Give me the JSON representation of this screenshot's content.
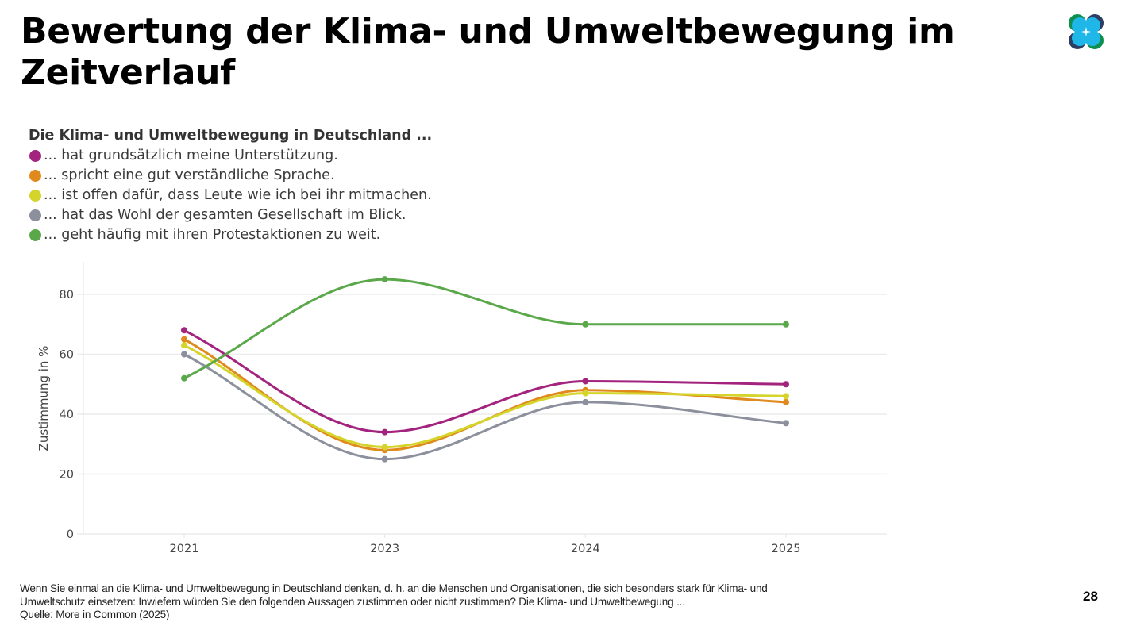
{
  "slide": {
    "title": "Bewertung der Klima- und Umweltbewegung im Zeitverlauf",
    "logo_icon": "four-circles-logo-icon",
    "page_number": "28",
    "brand_colors": [
      "#0e8f4f",
      "#2c3e63",
      "#1fb6e8"
    ]
  },
  "legend": {
    "title": "Die Klima- und Umweltbewegung in Deutschland ...",
    "items": [
      {
        "label": "... hat grundsätzlich meine Unterstützung.",
        "color": "#a3247e"
      },
      {
        "label": "... spricht eine gut verständliche Sprache.",
        "color": "#e08a1e"
      },
      {
        "label": "... ist offen dafür, dass Leute wie ich bei ihr mitmachen.",
        "color": "#d4d42a"
      },
      {
        "label": "... hat das Wohl der gesamten Gesellschaft im Blick.",
        "color": "#8b909c"
      },
      {
        "label": "... geht häufig mit ihren Protestaktionen zu weit.",
        "color": "#5aa84a"
      }
    ]
  },
  "footnote": {
    "line1": "Wenn Sie einmal an die Klima- und Umweltbewegung in Deutschland denken, d. h. an die Menschen und Organisationen, die sich besonders stark für Klima- und",
    "line2": "Umweltschutz einsetzen: Inwiefern würden Sie den folgenden Aussagen zustimmen oder nicht zustimmen? Die Klima- und Umweltbewegung ...",
    "source": "Quelle: More in Common (2025)"
  },
  "chart_data": {
    "type": "line",
    "title": "Die Klima- und Umweltbewegung in Deutschland ...",
    "xlabel": "",
    "ylabel": "Zustimmung in %",
    "categories": [
      "2021",
      "2023",
      "2024",
      "2025"
    ],
    "ylim": [
      0,
      90
    ],
    "yticks": [
      0,
      20,
      40,
      60,
      80
    ],
    "ytick_labels": [
      "0",
      "20",
      "40",
      "60",
      "80"
    ],
    "grid": true,
    "curve": "smooth",
    "legend_position": "top-left",
    "series": [
      {
        "name": "... hat grundsätzlich meine Unterstützung.",
        "color": "#a3247e",
        "values": [
          68,
          34,
          51,
          50
        ]
      },
      {
        "name": "... spricht eine gut verständliche Sprache.",
        "color": "#e08a1e",
        "values": [
          65,
          28,
          48,
          44
        ]
      },
      {
        "name": "... ist offen dafür, dass Leute wie ich bei ihr mitmachen.",
        "color": "#d4d42a",
        "values": [
          63,
          29,
          47,
          46
        ]
      },
      {
        "name": "... hat das Wohl der gesamten Gesellschaft im Blick.",
        "color": "#8b909c",
        "values": [
          60,
          25,
          44,
          37
        ]
      },
      {
        "name": "... geht häufig mit ihren Protestaktionen zu weit.",
        "color": "#5aa84a",
        "values": [
          52,
          85,
          70,
          70
        ]
      }
    ]
  }
}
